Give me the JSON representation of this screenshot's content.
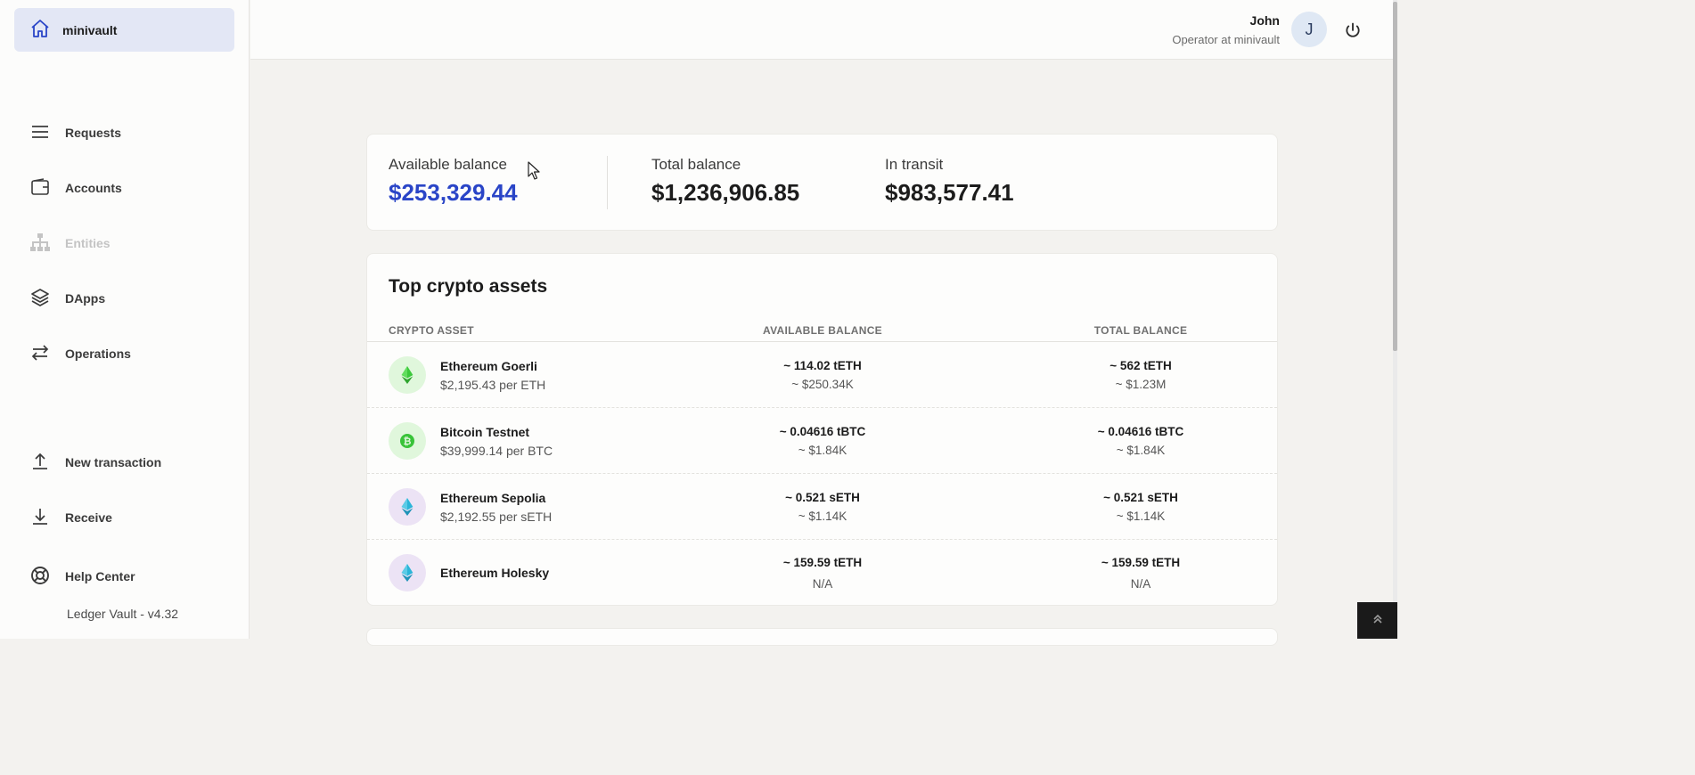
{
  "sidebar": {
    "brand": "minivault",
    "items": [
      {
        "label": "Requests",
        "icon": "menu-icon"
      },
      {
        "label": "Accounts",
        "icon": "wallet-icon"
      },
      {
        "label": "Entities",
        "icon": "hierarchy-icon"
      },
      {
        "label": "DApps",
        "icon": "layers-icon"
      },
      {
        "label": "Operations",
        "icon": "transfer-icon"
      },
      {
        "label": "New transaction",
        "icon": "upload-icon"
      },
      {
        "label": "Receive",
        "icon": "download-icon"
      },
      {
        "label": "Help Center",
        "icon": "lifebuoy-icon"
      }
    ],
    "version": "Ledger Vault - v4.32"
  },
  "header": {
    "user_name": "John",
    "user_role": "Operator at minivault",
    "avatar_initial": "J"
  },
  "balances": {
    "available_label": "Available balance",
    "available_value": "$253,329.44",
    "total_label": "Total balance",
    "total_value": "$1,236,906.85",
    "transit_label": "In transit",
    "transit_value": "$983,577.41"
  },
  "assets": {
    "title": "Top crypto assets",
    "columns": [
      "CRYPTO ASSET",
      "AVAILABLE BALANCE",
      "TOTAL BALANCE"
    ],
    "rows": [
      {
        "name": "Ethereum Goerli",
        "price": "$2,195.43 per ETH",
        "available": "~ 114.02 tETH",
        "available_fiat": "~ $250.34K",
        "total": "~ 562 tETH",
        "total_fiat": "~ $1.23M"
      },
      {
        "name": "Bitcoin Testnet",
        "price": "$39,999.14 per BTC",
        "available": "~ 0.04616 tBTC",
        "available_fiat": "~ $1.84K",
        "total": "~ 0.04616 tBTC",
        "total_fiat": "~ $1.84K"
      },
      {
        "name": "Ethereum Sepolia",
        "price": "$2,192.55 per sETH",
        "available": "~ 0.521 sETH",
        "available_fiat": "~ $1.14K",
        "total": "~ 0.521 sETH",
        "total_fiat": "~ $1.14K"
      },
      {
        "name": "Ethereum Holesky",
        "price": "",
        "available": "~ 159.59 tETH",
        "available_fiat": "N/A",
        "total": "~ 159.59 tETH",
        "total_fiat": "N/A"
      }
    ]
  },
  "colors": {
    "accent": "#2a45c7",
    "brand_bg": "#e3e7f5"
  }
}
